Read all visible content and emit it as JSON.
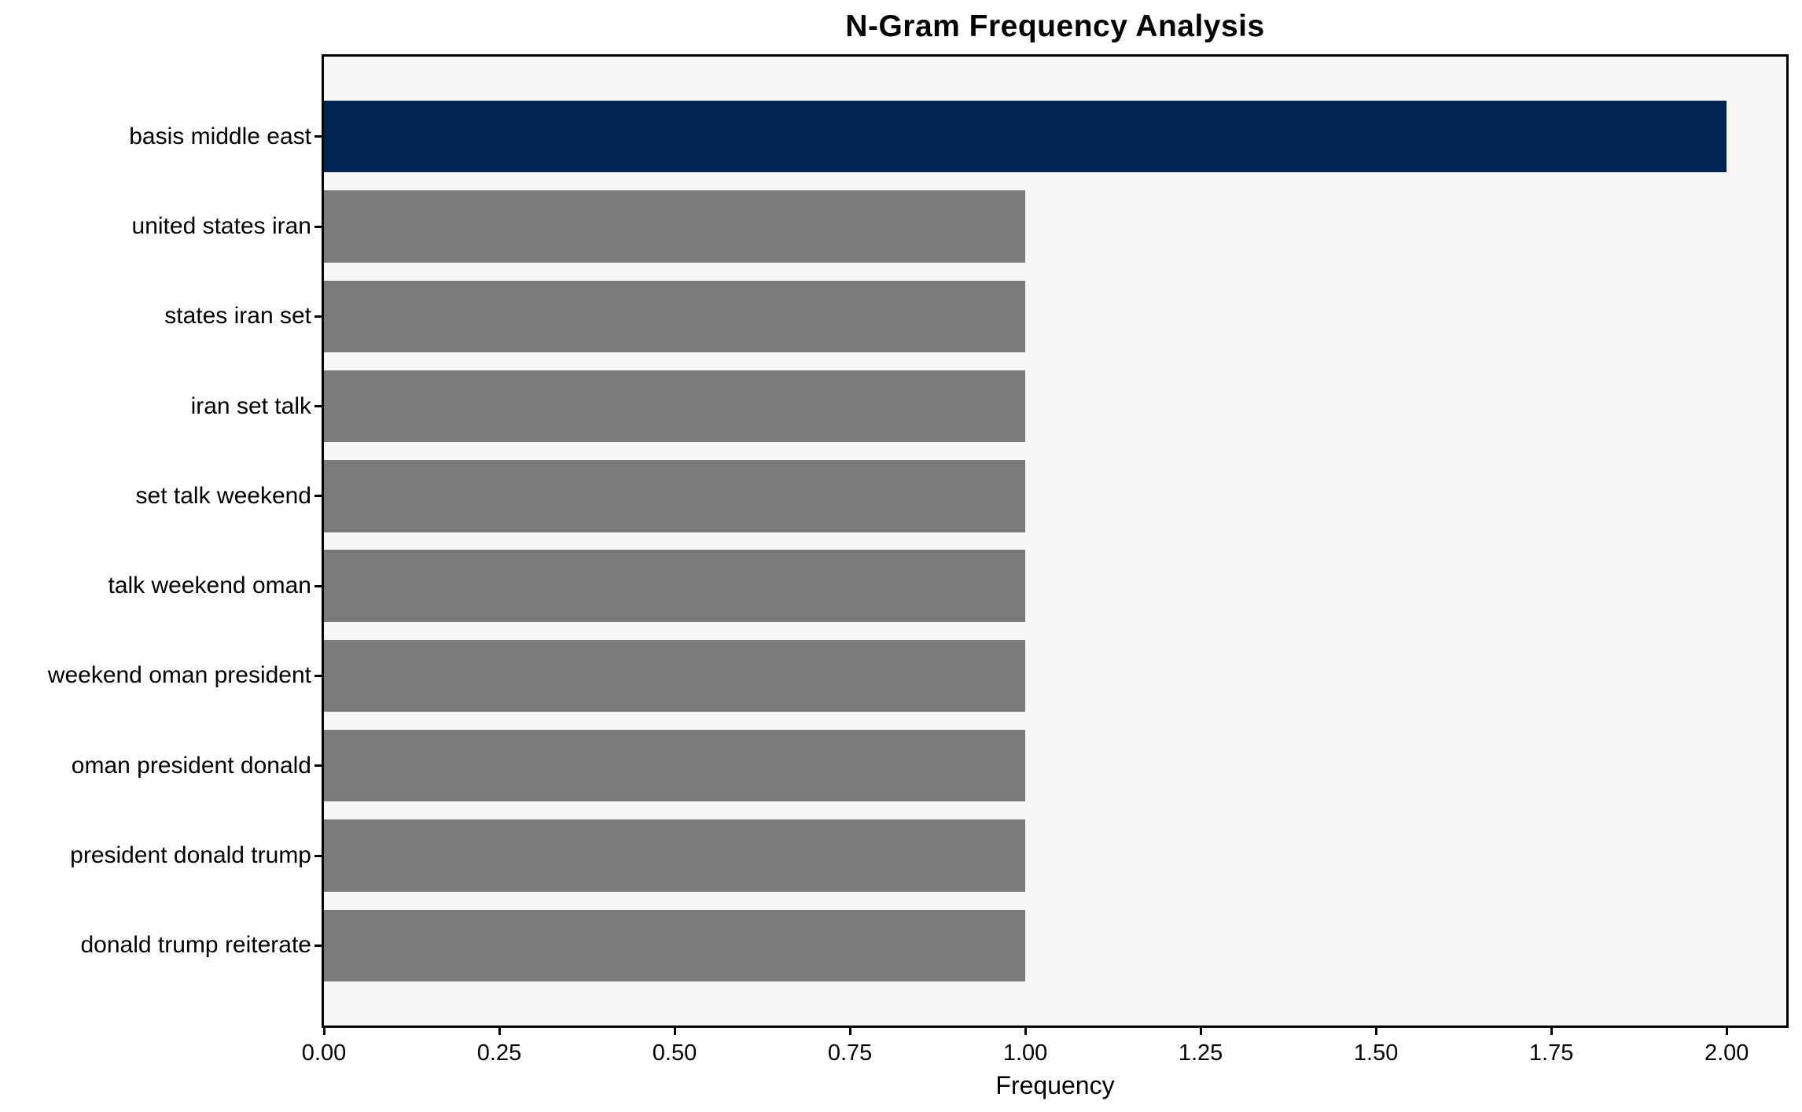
{
  "figure": {
    "background": "#ffffff"
  },
  "chart_data": {
    "type": "bar",
    "orientation": "horizontal",
    "title": "N-Gram Frequency Analysis",
    "xlabel": "Frequency",
    "ylabel": "",
    "categories": [
      "basis middle east",
      "united states iran",
      "states iran set",
      "iran set talk",
      "set talk weekend",
      "talk weekend oman",
      "weekend oman president",
      "oman president donald",
      "president donald trump",
      "donald trump reiterate"
    ],
    "values": [
      2,
      1,
      1,
      1,
      1,
      1,
      1,
      1,
      1,
      1
    ],
    "bar_colors": [
      "#01234e",
      "#7a7b77",
      "#7a7b77",
      "#7a7b77",
      "#7a7b77",
      "#7a7b77",
      "#7a7b77",
      "#7a7b77",
      "#7a7b77",
      "#7a7b77"
    ],
    "xlim": [
      0,
      2.085
    ],
    "xtick_values": [
      0,
      0.25,
      0.5,
      0.75,
      1.0,
      1.25,
      1.5,
      1.75,
      2.0
    ],
    "xtick_labels": [
      "0.00",
      "0.25",
      "0.50",
      "0.75",
      "1.00",
      "1.25",
      "1.50",
      "1.75",
      "2.00"
    ],
    "grid": false,
    "legend": "none",
    "colors": {
      "highlight_bar": "#01234e",
      "default_bar": "#7a7b77",
      "plot_background": "#f7f6f5",
      "figure_background": "#ffffff",
      "spine": "#000000",
      "text": "#000000"
    }
  }
}
